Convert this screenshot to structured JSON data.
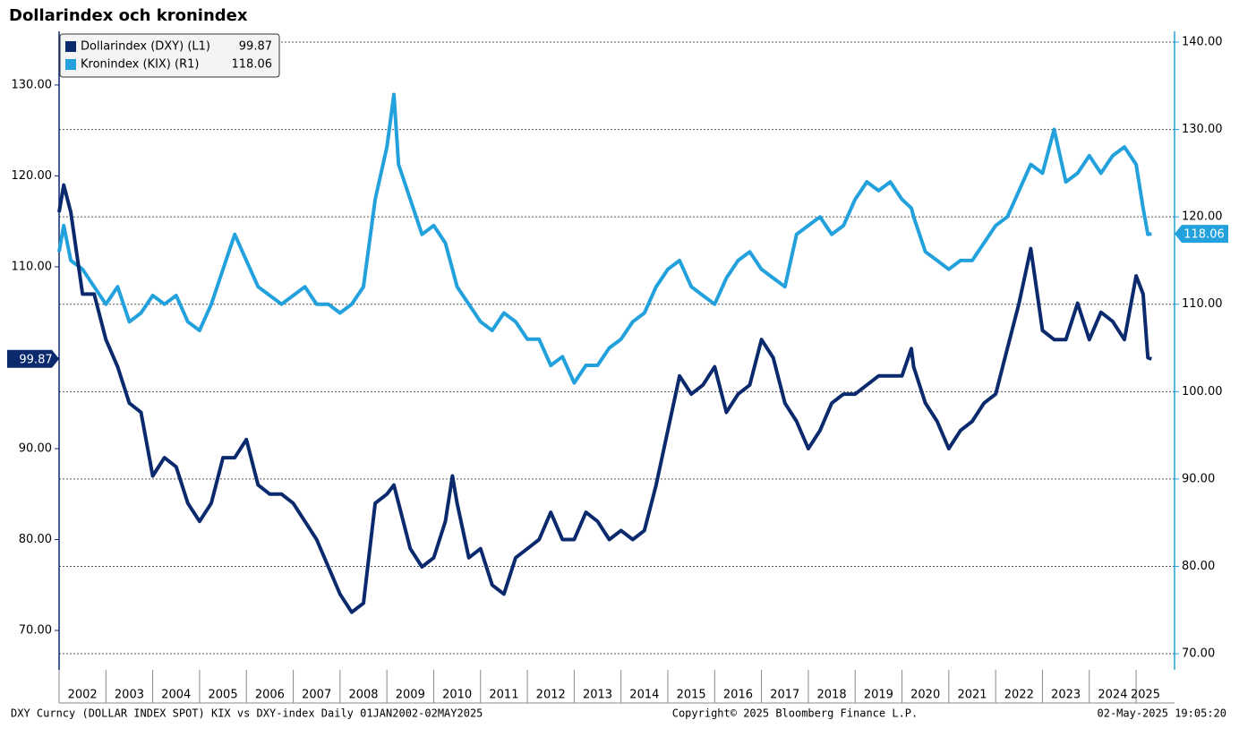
{
  "chart_data": {
    "type": "line",
    "title": "Dollarindex och kronindex",
    "footer_left": "DXY Curncy (DOLLAR INDEX SPOT) KIX vs DXY-index  Daily 01JAN2002-02MAY2025",
    "footer_center": "Copyright© 2025 Bloomberg Finance L.P.",
    "footer_right": "02-May-2025 19:05:20",
    "x": [
      2002,
      2002.1,
      2002.25,
      2002.5,
      2002.75,
      2003,
      2003.25,
      2003.5,
      2003.75,
      2004,
      2004.25,
      2004.5,
      2004.75,
      2005,
      2005.25,
      2005.5,
      2005.75,
      2006,
      2006.25,
      2006.5,
      2006.75,
      2007,
      2007.25,
      2007.5,
      2007.75,
      2008,
      2008.25,
      2008.5,
      2008.75,
      2009,
      2009.15,
      2009.25,
      2009.5,
      2009.75,
      2010,
      2010.25,
      2010.4,
      2010.5,
      2010.75,
      2011,
      2011.25,
      2011.5,
      2011.75,
      2012,
      2012.25,
      2012.5,
      2012.75,
      2013,
      2013.25,
      2013.5,
      2013.75,
      2014,
      2014.25,
      2014.5,
      2014.75,
      2015,
      2015.25,
      2015.5,
      2015.75,
      2016,
      2016.25,
      2016.5,
      2016.75,
      2017,
      2017.25,
      2017.5,
      2017.75,
      2018,
      2018.25,
      2018.5,
      2018.75,
      2019,
      2019.25,
      2019.5,
      2019.75,
      2020,
      2020.2,
      2020.25,
      2020.5,
      2020.75,
      2021,
      2021.25,
      2021.5,
      2021.75,
      2022,
      2022.25,
      2022.5,
      2022.75,
      2023,
      2023.25,
      2023.5,
      2023.75,
      2024,
      2024.25,
      2024.5,
      2024.75,
      2025,
      2025.15,
      2025.25,
      2025.33
    ],
    "series": [
      {
        "name": "Dollarindex (DXY) (L1)",
        "color": "#0b2a6e",
        "axis": "y",
        "values": [
          116,
          119,
          116,
          107,
          107,
          102,
          99,
          95,
          94,
          87,
          89,
          88,
          84,
          82,
          84,
          89,
          89,
          91,
          86,
          85,
          85,
          84,
          82,
          80,
          77,
          74,
          72,
          73,
          84,
          85,
          86,
          84,
          79,
          77,
          78,
          82,
          87,
          84,
          78,
          79,
          75,
          74,
          78,
          79,
          80,
          83,
          80,
          80,
          83,
          82,
          80,
          81,
          80,
          81,
          86,
          92,
          98,
          96,
          97,
          99,
          94,
          96,
          97,
          102,
          100,
          95,
          93,
          90,
          92,
          95,
          96,
          96,
          97,
          98,
          98,
          98,
          101,
          99,
          95,
          93,
          90,
          92,
          93,
          95,
          96,
          101,
          106,
          112,
          103,
          102,
          102,
          106,
          102,
          105,
          104,
          102,
          109,
          107,
          100,
          99.87
        ]
      },
      {
        "name": "Kronindex (KIX) (R1)",
        "color": "#22a1dc",
        "axis": "y2",
        "values": [
          116,
          119,
          115,
          114,
          112,
          110,
          112,
          108,
          109,
          111,
          110,
          111,
          108,
          107,
          110,
          114,
          118,
          115,
          112,
          111,
          110,
          111,
          112,
          110,
          110,
          109,
          110,
          112,
          122,
          128,
          134,
          126,
          122,
          118,
          119,
          117,
          114,
          112,
          110,
          108,
          107,
          109,
          108,
          106,
          106,
          103,
          104,
          101,
          103,
          103,
          105,
          106,
          108,
          109,
          112,
          114,
          115,
          112,
          111,
          110,
          113,
          115,
          116,
          114,
          113,
          112,
          118,
          119,
          120,
          118,
          119,
          122,
          124,
          123,
          124,
          122,
          121,
          120,
          116,
          115,
          114,
          115,
          115,
          117,
          119,
          120,
          123,
          126,
          125,
          130,
          124,
          125,
          127,
          125,
          127,
          128,
          126,
          121,
          118,
          118.06
        ]
      }
    ],
    "xlim": [
      2002,
      2025.4
    ],
    "xticks": [
      2002,
      2003,
      2004,
      2005,
      2006,
      2007,
      2008,
      2009,
      2010,
      2011,
      2012,
      2013,
      2014,
      2015,
      2016,
      2017,
      2018,
      2019,
      2020,
      2021,
      2022,
      2023,
      2024,
      2025
    ],
    "ylim": [
      65.67,
      135.9
    ],
    "yticks": [
      {
        "value": 70,
        "label": "70.00"
      },
      {
        "value": 80,
        "label": "80.00"
      },
      {
        "value": 90,
        "label": "90.00"
      },
      {
        "value": 100,
        "label": "100.00"
      },
      {
        "value": 110,
        "label": "110.00"
      },
      {
        "value": 120,
        "label": "120.00"
      },
      {
        "value": 130,
        "label": "130.00"
      }
    ],
    "y2lim": [
      68.16,
      141.23
    ],
    "y2ticks": [
      {
        "value": 70,
        "label": "70.00"
      },
      {
        "value": 80,
        "label": "80.00"
      },
      {
        "value": 90,
        "label": "90.00"
      },
      {
        "value": 100,
        "label": "100.00"
      },
      {
        "value": 110,
        "label": "110.00"
      },
      {
        "value": 120,
        "label": "120.00"
      },
      {
        "value": 130,
        "label": "130.00"
      },
      {
        "value": 140,
        "label": "140.00"
      }
    ],
    "grid": true,
    "legend": "top-left"
  }
}
